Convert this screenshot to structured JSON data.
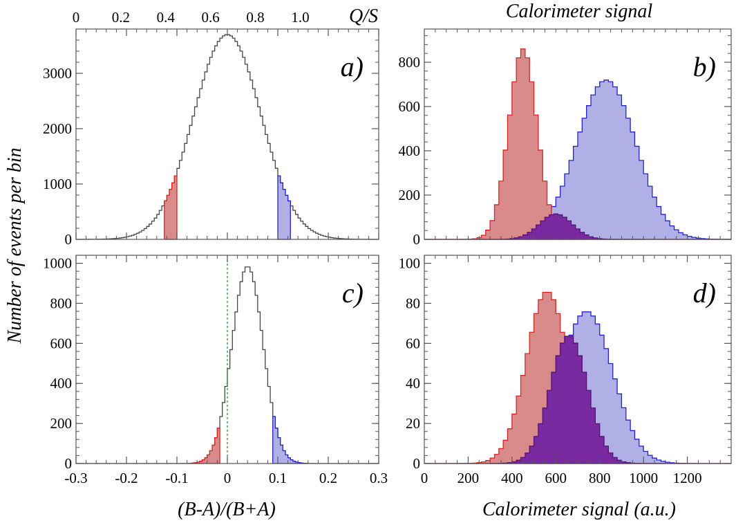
{
  "labels": {
    "ylabel": "Number of events per bin",
    "xlabel_left": "(B-A)/(B+A)",
    "xlabel_right": "Calorimeter signal (a.u.)",
    "title_top_right": "Calorimeter signal",
    "top_axis_label": "Q/S"
  },
  "colors": {
    "outline": "#444444",
    "red_fill": "#d98a8a",
    "red_line": "#dd2222",
    "blue_fill": "#b0b0e6",
    "blue_line": "#2222cc",
    "purple_fill": "#7a2aa0",
    "purple_line": "#551177",
    "guide": "#228822"
  },
  "chart_data": [
    {
      "panel": "a)",
      "type": "histogram",
      "xlim": [
        -0.3,
        0.3
      ],
      "ylim": [
        0,
        3800
      ],
      "xticks": [
        -0.3,
        -0.2,
        -0.1,
        0,
        0.1,
        0.2,
        0.3
      ],
      "yticks": [
        0,
        1000,
        2000,
        3000
      ],
      "ytick_labels": [
        "0",
        "1000",
        "2000",
        "3000"
      ],
      "top_axis": {
        "label": "Q/S",
        "ticks": [
          0,
          0.2,
          0.4,
          0.6,
          0.8,
          1.0
        ],
        "tick_labels": [
          "0",
          "0.2",
          "0.4",
          "0.6",
          "0.8",
          "1.0"
        ],
        "xlim": [
          0,
          1.35
        ]
      },
      "series": [
        {
          "kind": "gaussian",
          "mean": 0.0,
          "sigma": 0.067,
          "peak": 3700,
          "range": [
            -0.3,
            0.3
          ],
          "bin": 0.005,
          "style": "outline"
        },
        {
          "kind": "gaussian_slice",
          "mean": 0.0,
          "sigma": 0.067,
          "peak": 3700,
          "range": [
            -0.125,
            -0.1
          ],
          "bin": 0.005,
          "style": "red"
        },
        {
          "kind": "gaussian_slice",
          "mean": 0.0,
          "sigma": 0.067,
          "peak": 3700,
          "range": [
            0.1,
            0.125
          ],
          "bin": 0.005,
          "style": "blue"
        }
      ]
    },
    {
      "panel": "b)",
      "type": "histogram",
      "xlim": [
        0,
        1400
      ],
      "ylim": [
        0,
        950
      ],
      "xticks": [],
      "yticks": [
        0,
        200,
        400,
        600,
        800
      ],
      "ytick_labels": [
        "0",
        "200",
        "400",
        "600",
        "800"
      ],
      "series": [
        {
          "kind": "gaussian",
          "mean": 830,
          "sigma": 135,
          "peak": 720,
          "range": [
            0,
            1400
          ],
          "bin": 20,
          "style": "blue"
        },
        {
          "kind": "gaussian",
          "mean": 450,
          "sigma": 65,
          "peak": 860,
          "range": [
            0,
            1400
          ],
          "bin": 20,
          "style": "red"
        },
        {
          "kind": "gaussian",
          "mean": 600,
          "sigma": 75,
          "peak": 115,
          "range": [
            250,
            1000
          ],
          "bin": 20,
          "style": "purple"
        }
      ]
    },
    {
      "panel": "c)",
      "type": "histogram",
      "xlim": [
        -0.3,
        0.3
      ],
      "ylim": [
        0,
        1040
      ],
      "xticks": [
        -0.3,
        -0.2,
        -0.1,
        0,
        0.1,
        0.2,
        0.3
      ],
      "xtick_labels": [
        "-0.3",
        "-0.2",
        "-0.1",
        "0",
        "0.1",
        "0.2",
        "0.3"
      ],
      "yticks": [
        0,
        200,
        400,
        600,
        800,
        1000
      ],
      "ytick_labels": [
        "0",
        "200",
        "400",
        "600",
        "800",
        "1000"
      ],
      "guide_x": 0,
      "series": [
        {
          "kind": "gaussian",
          "mean": 0.04,
          "sigma": 0.031,
          "peak": 985,
          "range": [
            -0.3,
            0.3
          ],
          "bin": 0.005,
          "style": "outline"
        },
        {
          "kind": "gaussian_slice",
          "mean": 0.04,
          "sigma": 0.031,
          "peak": 985,
          "range": [
            -0.075,
            -0.015
          ],
          "bin": 0.005,
          "style": "red"
        },
        {
          "kind": "gaussian_slice",
          "mean": 0.04,
          "sigma": 0.031,
          "peak": 985,
          "range": [
            0.09,
            0.16
          ],
          "bin": 0.005,
          "style": "blue"
        }
      ]
    },
    {
      "panel": "d)",
      "type": "histogram",
      "xlim": [
        0,
        1400
      ],
      "ylim": [
        0,
        104
      ],
      "xticks": [
        0,
        200,
        400,
        600,
        800,
        1000,
        1200
      ],
      "xtick_labels": [
        "0",
        "200",
        "400",
        "600",
        "800",
        "1000",
        "1200"
      ],
      "yticks": [
        0,
        20,
        40,
        60,
        80,
        100
      ],
      "ytick_labels": [
        "0",
        "20",
        "40",
        "60",
        "80",
        "100"
      ],
      "series": [
        {
          "kind": "gaussian",
          "mean": 740,
          "sigma": 120,
          "peak": 76,
          "range": [
            0,
            1400
          ],
          "bin": 20,
          "style": "blue"
        },
        {
          "kind": "gaussian",
          "mean": 560,
          "sigma": 95,
          "peak": 86,
          "range": [
            0,
            1400
          ],
          "bin": 20,
          "style": "red"
        },
        {
          "kind": "gaussian",
          "mean": 660,
          "sigma": 85,
          "peak": 64,
          "range": [
            300,
            1100
          ],
          "bin": 20,
          "style": "purple"
        }
      ]
    }
  ]
}
